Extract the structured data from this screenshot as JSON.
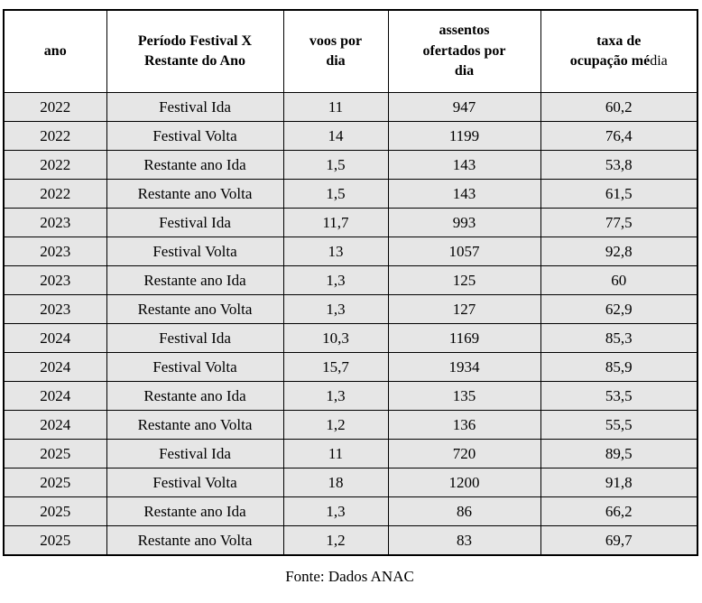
{
  "chart_data": {
    "type": "table",
    "columns": [
      "ano",
      "Período Festival X\nRestante do Ano",
      "voos por\ndia",
      "assentos\nofertados por\ndia",
      "taxa de\nocupação média"
    ],
    "rows": [
      [
        "2022",
        "Festival Ida",
        "11",
        "947",
        "60,2"
      ],
      [
        "2022",
        "Festival Volta",
        "14",
        "1199",
        "76,4"
      ],
      [
        "2022",
        "Restante ano Ida",
        "1,5",
        "143",
        "53,8"
      ],
      [
        "2022",
        "Restante ano Volta",
        "1,5",
        "143",
        "61,5"
      ],
      [
        "2023",
        "Festival Ida",
        "11,7",
        "993",
        "77,5"
      ],
      [
        "2023",
        "Festival Volta",
        "13",
        "1057",
        "92,8"
      ],
      [
        "2023",
        "Restante ano Ida",
        "1,3",
        "125",
        "60"
      ],
      [
        "2023",
        "Restante ano Volta",
        "1,3",
        "127",
        "62,9"
      ],
      [
        "2024",
        "Festival Ida",
        "10,3",
        "1169",
        "85,3"
      ],
      [
        "2024",
        "Festival Volta",
        "15,7",
        "1934",
        "85,9"
      ],
      [
        "2024",
        "Restante ano Ida",
        "1,3",
        "135",
        "53,5"
      ],
      [
        "2024",
        "Restante ano Volta",
        "1,2",
        "136",
        "55,5"
      ],
      [
        "2025",
        "Festival Ida",
        "11",
        "720",
        "89,5"
      ],
      [
        "2025",
        "Festival Volta",
        "18",
        "1200",
        "91,8"
      ],
      [
        "2025",
        "Restante ano Ida",
        "1,3",
        "86",
        "66,2"
      ],
      [
        "2025",
        "Restante ano Volta",
        "1,2",
        "83",
        "69,7"
      ]
    ],
    "source": "Fonte: Dados ANAC"
  },
  "header_split": {
    "taxa_bold": "taxa de\nocupação mé",
    "taxa_regular": "dia"
  },
  "footer": {
    "source_label": "Fonte: Dados ANAC"
  },
  "colors": {
    "row_fill": "#e6e6e6",
    "header_fill": "#ffffff",
    "border": "#000000",
    "text": "#000000"
  }
}
